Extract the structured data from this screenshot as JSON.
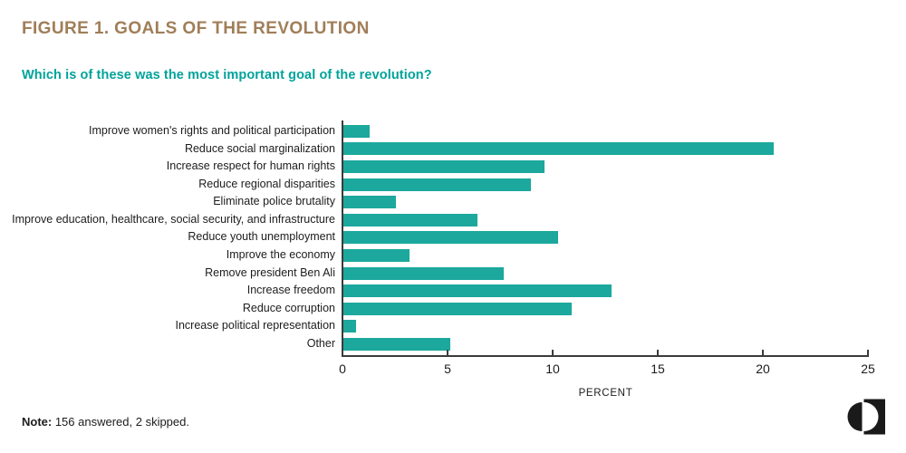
{
  "figure": {
    "title": "FIGURE 1. GOALS OF THE REVOLUTION",
    "subtitle": "Which is of these was the most important goal of the revolution?",
    "note_label": "Note:",
    "note_text": " 156 answered, 2 skipped."
  },
  "colors": {
    "bar": "#1CA89D",
    "title": "#A07E58",
    "subtitle": "#00A39A",
    "axis": "#3b3b3b",
    "logo": "#1a1a1a"
  },
  "chart_data": {
    "type": "bar",
    "orientation": "horizontal",
    "title": "Which is of these was the most important goal of the revolution?",
    "categories": [
      "Improve women's rights and political participation",
      "Reduce social marginalization",
      "Increase respect for human rights",
      "Reduce regional disparities",
      "Eliminate police brutality",
      "Improve education, healthcare, social security, and infrastructure",
      "Reduce youth unemployment",
      "Improve the economy",
      "Remove president Ben Ali",
      "Increase freedom",
      "Reduce corruption",
      "Increase political representation",
      "Other"
    ],
    "values": [
      1.28,
      20.51,
      9.62,
      8.97,
      2.56,
      6.41,
      10.26,
      3.21,
      7.69,
      12.82,
      10.9,
      0.64,
      5.13
    ],
    "xlabel": "PERCENT",
    "ylabel": "",
    "xlim": [
      0,
      25
    ],
    "x_ticks": [
      0,
      5,
      10,
      15,
      20,
      25
    ],
    "grid": false,
    "legend": false
  }
}
